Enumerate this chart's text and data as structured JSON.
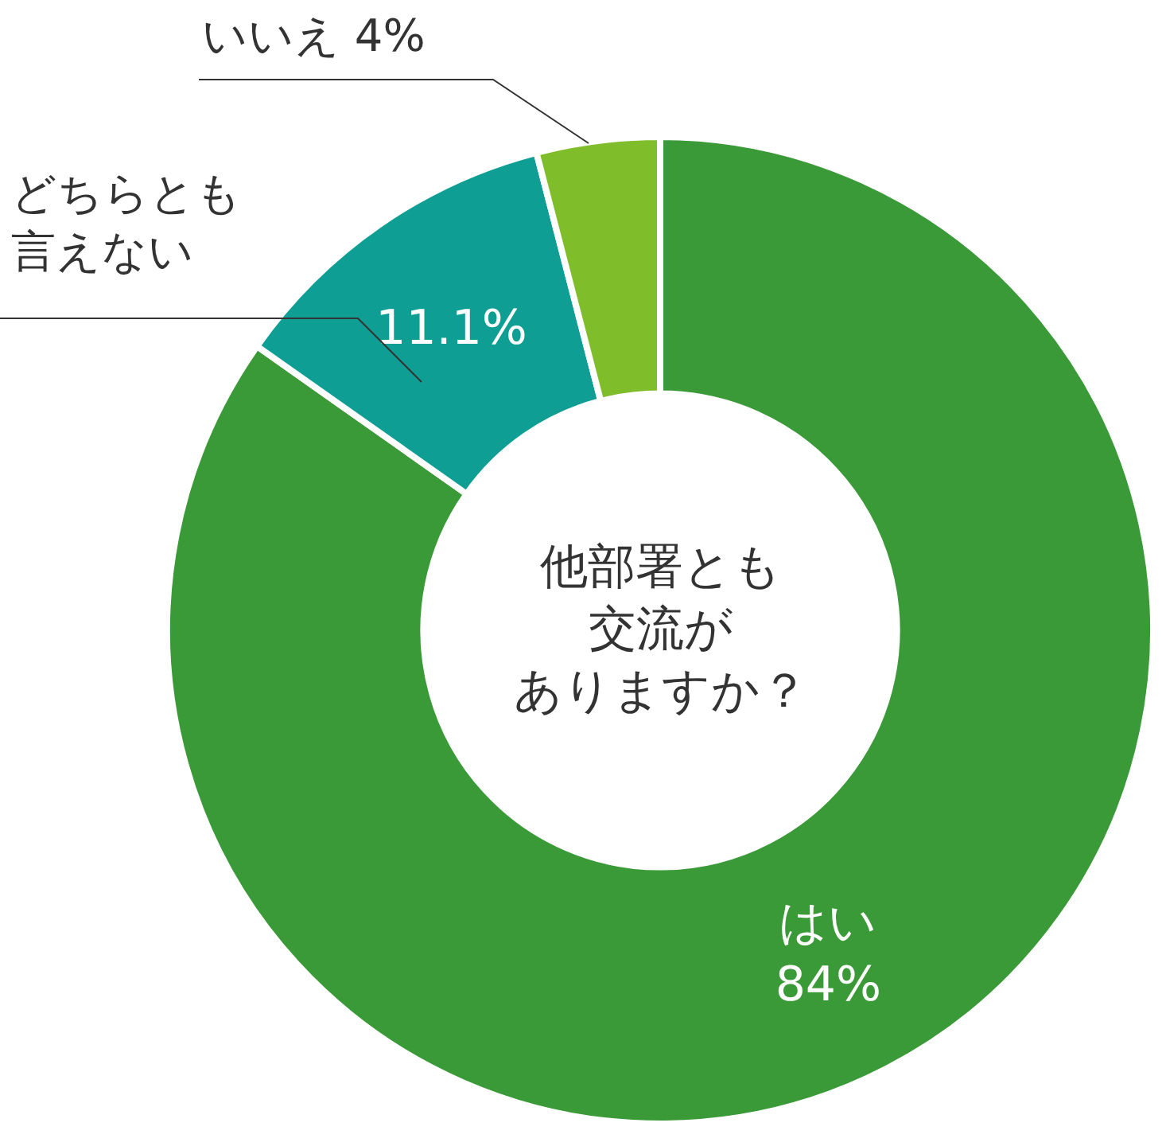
{
  "chart_data": {
    "type": "donut",
    "title": "他部署とも交流がありますか？",
    "categories": [
      "はい",
      "どちらとも言えない",
      "いいえ"
    ],
    "values": [
      84,
      11.1,
      4
    ],
    "value_labels": [
      "84%",
      "11.1%",
      "4%"
    ],
    "colors": [
      "#3a9a37",
      "#0e9e94",
      "#7fbd2a"
    ],
    "legend": false
  }
}
